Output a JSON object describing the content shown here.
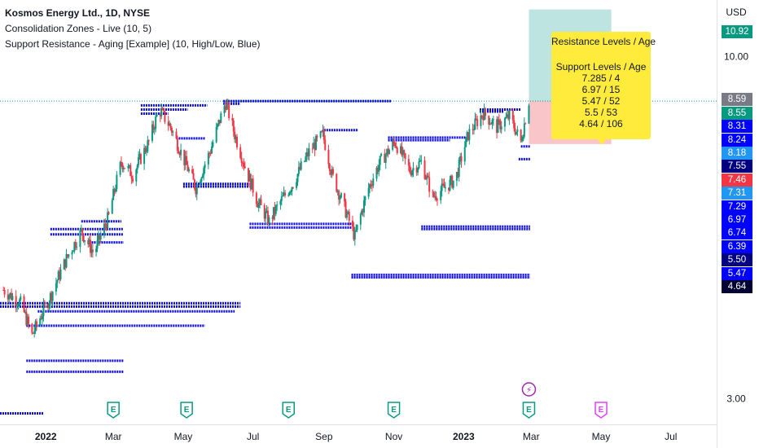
{
  "legend": {
    "title": "Kosmos Energy Ltd., 1D, NYSE",
    "indicator_1": "Consolidation Zones - Live (10, 5)",
    "indicator_2": "Support Resistance - Aging [Example] (10, High/Low, Blue)"
  },
  "tooltip": {
    "heading_resistance": "Resistance Levels / Age",
    "heading_support": "Support Levels / Age",
    "support_levels": [
      "7.285 / 4",
      "6.97 / 15",
      "5.47 / 52",
      "5.5 / 53",
      "4.64 / 106"
    ],
    "color": "#ffeb3b"
  },
  "price_tags": [
    {
      "label": "10.92",
      "color": "#089981",
      "value": 10.92
    },
    {
      "label": "8.59",
      "color": "#787b86",
      "value": 8.59
    },
    {
      "label": "8.55",
      "color": "#089981",
      "value": 8.55
    },
    {
      "label": "8.31",
      "color": "#0000ff",
      "value": 8.31
    },
    {
      "label": "8.24",
      "color": "#0000ff",
      "value": 8.24
    },
    {
      "label": "8.18",
      "color": "#2196f3",
      "value": 8.18
    },
    {
      "label": "7.55",
      "color": "#000080",
      "value": 7.55
    },
    {
      "label": "7.46",
      "color": "#f23645",
      "value": 7.46
    },
    {
      "label": "7.31",
      "color": "#2196f3",
      "value": 7.31
    },
    {
      "label": "7.29",
      "color": "#0000ff",
      "value": 7.29
    },
    {
      "label": "6.97",
      "color": "#0000ff",
      "value": 6.97
    },
    {
      "label": "6.74",
      "color": "#0000ff",
      "value": 6.74
    },
    {
      "label": "6.39",
      "color": "#0000ff",
      "value": 6.39
    },
    {
      "label": "5.50",
      "color": "#000080",
      "value": 5.5
    },
    {
      "label": "5.47",
      "color": "#0000ff",
      "value": 5.47
    },
    {
      "label": "4.64",
      "color": "#000033",
      "value": 4.64
    }
  ],
  "icons": [
    {
      "name": "earnings-icon",
      "glyph": "E",
      "color": "#089981",
      "date": "2022-03-01"
    },
    {
      "name": "earnings-icon",
      "glyph": "E",
      "color": "#089981",
      "date": "2022-05-04"
    },
    {
      "name": "earnings-icon",
      "glyph": "E",
      "color": "#089981",
      "date": "2022-08-01"
    },
    {
      "name": "earnings-icon",
      "glyph": "E",
      "color": "#089981",
      "date": "2022-11-01"
    },
    {
      "name": "earnings-icon",
      "glyph": "E",
      "color": "#089981",
      "date": "2023-02-27"
    },
    {
      "name": "earnings-icon",
      "glyph": "E",
      "color": "#e040fb",
      "date": "2023-05-01"
    },
    {
      "name": "split-dividend-icon",
      "glyph": "⚡",
      "color": "#9c27b0",
      "date": "2023-02-27"
    }
  ],
  "chart_data": {
    "type": "candlestick",
    "title": "Kosmos Energy Ltd., 1D, NYSE",
    "currency": "USD",
    "y_scale": "log",
    "ylim": [
      2.75,
      12.2
    ],
    "y_ticks": [
      3.0,
      10.0
    ],
    "x_range": [
      "2021-11-22",
      "2023-08-10"
    ],
    "x_ticks": [
      {
        "label": "2022",
        "date": "2022-01-01",
        "bold": true
      },
      {
        "label": "Mar",
        "date": "2022-03-01"
      },
      {
        "label": "May",
        "date": "2022-05-01"
      },
      {
        "label": "Jul",
        "date": "2022-07-01"
      },
      {
        "label": "Sep",
        "date": "2022-09-01"
      },
      {
        "label": "Nov",
        "date": "2022-11-01"
      },
      {
        "label": "2023",
        "date": "2023-01-01",
        "bold": true
      },
      {
        "label": "Mar",
        "date": "2023-03-01"
      },
      {
        "label": "May",
        "date": "2023-05-01"
      },
      {
        "label": "Jul",
        "date": "2023-07-01"
      }
    ],
    "last_price": 8.55,
    "price_path": [
      {
        "date": "2021-11-25",
        "close": 4.4
      },
      {
        "date": "2021-12-10",
        "close": 4.2
      },
      {
        "date": "2021-12-20",
        "close": 3.75
      },
      {
        "date": "2022-01-05",
        "close": 4.3
      },
      {
        "date": "2022-01-20",
        "close": 4.95
      },
      {
        "date": "2022-02-01",
        "close": 5.4
      },
      {
        "date": "2022-02-12",
        "close": 5.0
      },
      {
        "date": "2022-02-25",
        "close": 5.7
      },
      {
        "date": "2022-03-08",
        "close": 6.9
      },
      {
        "date": "2022-03-18",
        "close": 6.6
      },
      {
        "date": "2022-04-01",
        "close": 7.4
      },
      {
        "date": "2022-04-10",
        "close": 8.3
      },
      {
        "date": "2022-04-20",
        "close": 7.8
      },
      {
        "date": "2022-05-01",
        "close": 7.0
      },
      {
        "date": "2022-05-12",
        "close": 6.3
      },
      {
        "date": "2022-05-25",
        "close": 7.2
      },
      {
        "date": "2022-06-07",
        "close": 8.5
      },
      {
        "date": "2022-06-15",
        "close": 7.6
      },
      {
        "date": "2022-06-25",
        "close": 6.7
      },
      {
        "date": "2022-07-05",
        "close": 6.0
      },
      {
        "date": "2022-07-15",
        "close": 5.6
      },
      {
        "date": "2022-07-25",
        "close": 6.0
      },
      {
        "date": "2022-08-05",
        "close": 6.4
      },
      {
        "date": "2022-08-20",
        "close": 7.2
      },
      {
        "date": "2022-08-31",
        "close": 7.6
      },
      {
        "date": "2022-09-08",
        "close": 6.6
      },
      {
        "date": "2022-09-20",
        "close": 5.8
      },
      {
        "date": "2022-09-28",
        "close": 5.3
      },
      {
        "date": "2022-10-10",
        "close": 6.3
      },
      {
        "date": "2022-10-20",
        "close": 6.9
      },
      {
        "date": "2022-11-02",
        "close": 7.4
      },
      {
        "date": "2022-11-15",
        "close": 6.7
      },
      {
        "date": "2022-11-25",
        "close": 6.9
      },
      {
        "date": "2022-12-05",
        "close": 6.1
      },
      {
        "date": "2022-12-15",
        "close": 6.3
      },
      {
        "date": "2022-12-25",
        "close": 6.5
      },
      {
        "date": "2023-01-05",
        "close": 7.6
      },
      {
        "date": "2023-01-18",
        "close": 8.2
      },
      {
        "date": "2023-01-30",
        "close": 7.8
      },
      {
        "date": "2023-02-10",
        "close": 8.1
      },
      {
        "date": "2023-02-20",
        "close": 7.4
      },
      {
        "date": "2023-02-27",
        "close": 8.55
      }
    ],
    "support_resistance_lines": [
      {
        "from": "2022-03-25",
        "to": "2022-05-22",
        "price": 8.42
      },
      {
        "from": "2022-03-25",
        "to": "2022-05-05",
        "price": 8.3
      },
      {
        "from": "2022-03-25",
        "to": "2022-04-18",
        "price": 8.18
      },
      {
        "from": "2022-06-05",
        "to": "2022-10-30",
        "price": 8.55
      },
      {
        "from": "2022-06-05",
        "to": "2022-06-20",
        "price": 8.47
      },
      {
        "from": "2022-09-01",
        "to": "2022-10-01",
        "price": 7.72
      },
      {
        "from": "2022-10-27",
        "to": "2023-01-05",
        "price": 7.52
      },
      {
        "from": "2022-10-27",
        "to": "2022-12-20",
        "price": 7.45
      },
      {
        "from": "2022-04-25",
        "to": "2022-05-20",
        "price": 7.5
      },
      {
        "from": "2023-01-15",
        "to": "2023-02-20",
        "price": 8.3
      },
      {
        "from": "2023-01-15",
        "to": "2023-02-05",
        "price": 8.24
      },
      {
        "from": "2023-02-20",
        "to": "2023-02-28",
        "price": 7.29
      },
      {
        "from": "2023-02-18",
        "to": "2023-02-28",
        "price": 6.97
      },
      {
        "from": "2022-11-25",
        "to": "2023-02-28",
        "price": 5.5
      },
      {
        "from": "2022-11-25",
        "to": "2023-02-28",
        "price": 5.45
      },
      {
        "from": "2022-09-25",
        "to": "2023-02-28",
        "price": 4.64
      },
      {
        "from": "2022-09-25",
        "to": "2023-02-28",
        "price": 4.6
      },
      {
        "from": "2022-06-28",
        "to": "2022-09-25",
        "price": 5.55
      },
      {
        "from": "2022-06-28",
        "to": "2022-09-25",
        "price": 5.48
      },
      {
        "from": "2022-05-01",
        "to": "2022-06-28",
        "price": 6.39
      },
      {
        "from": "2022-05-01",
        "to": "2022-06-28",
        "price": 6.33
      },
      {
        "from": "2022-01-05",
        "to": "2022-03-10",
        "price": 5.45
      },
      {
        "from": "2022-01-05",
        "to": "2022-03-10",
        "price": 5.35
      },
      {
        "from": "2022-02-10",
        "to": "2022-03-10",
        "price": 5.2
      },
      {
        "from": "2022-02-01",
        "to": "2022-03-08",
        "price": 5.6
      },
      {
        "from": "2021-11-22",
        "to": "2022-06-20",
        "price": 4.2
      },
      {
        "from": "2021-11-22",
        "to": "2022-06-20",
        "price": 4.15
      },
      {
        "from": "2021-12-25",
        "to": "2022-06-15",
        "price": 4.08
      },
      {
        "from": "2021-12-15",
        "to": "2022-05-20",
        "price": 3.88
      },
      {
        "from": "2021-12-15",
        "to": "2022-03-10",
        "price": 3.43
      },
      {
        "from": "2021-12-15",
        "to": "2022-03-10",
        "price": 3.3
      },
      {
        "from": "2021-11-22",
        "to": "2021-12-30",
        "price": 2.85
      }
    ],
    "consolidation_zone": {
      "from": "2023-02-27",
      "to": "2023-05-10",
      "top": 8.55,
      "bottom": 7.35
    },
    "position_profit_zone": {
      "top": 11.8,
      "bottom": 8.55
    },
    "position_loss_zone": {
      "top": 8.55,
      "bottom": 7.35
    }
  }
}
